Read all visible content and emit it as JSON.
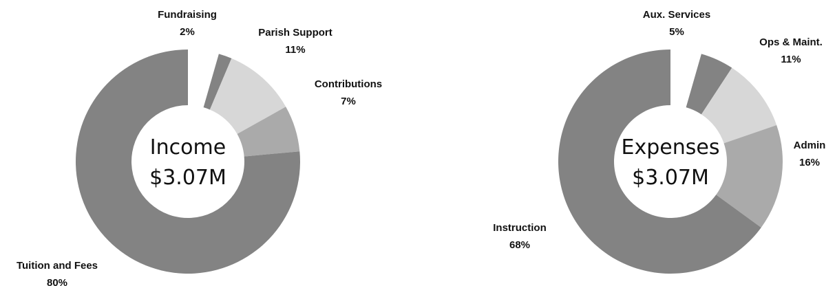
{
  "chart_data": [
    {
      "type": "pie",
      "subtype": "donut",
      "center_title": "Income",
      "center_value": "$3.07M",
      "colors": [
        "#838383",
        "#d7d7d7",
        "#aaaaaa",
        "#838383"
      ],
      "slices": [
        {
          "label": "Fundraising",
          "value": 2,
          "value_label": "2%"
        },
        {
          "label": "Parish Support",
          "value": 11,
          "value_label": "11%"
        },
        {
          "label": "Contributions",
          "value": 7,
          "value_label": "7%"
        },
        {
          "label": "Tuition and Fees",
          "value": 80,
          "value_label": "80%"
        }
      ]
    },
    {
      "type": "pie",
      "subtype": "donut",
      "center_title": "Expenses",
      "center_value": "$3.07M",
      "colors": [
        "#838383",
        "#d7d7d7",
        "#aaaaaa",
        "#838383"
      ],
      "slices": [
        {
          "label": "Aux. Services",
          "value": 5,
          "value_label": "5%"
        },
        {
          "label": "Ops & Maint.",
          "value": 11,
          "value_label": "11%"
        },
        {
          "label": "Admin",
          "value": 16,
          "value_label": "16%"
        },
        {
          "label": "Instruction",
          "value": 68,
          "value_label": "68%"
        }
      ]
    }
  ]
}
